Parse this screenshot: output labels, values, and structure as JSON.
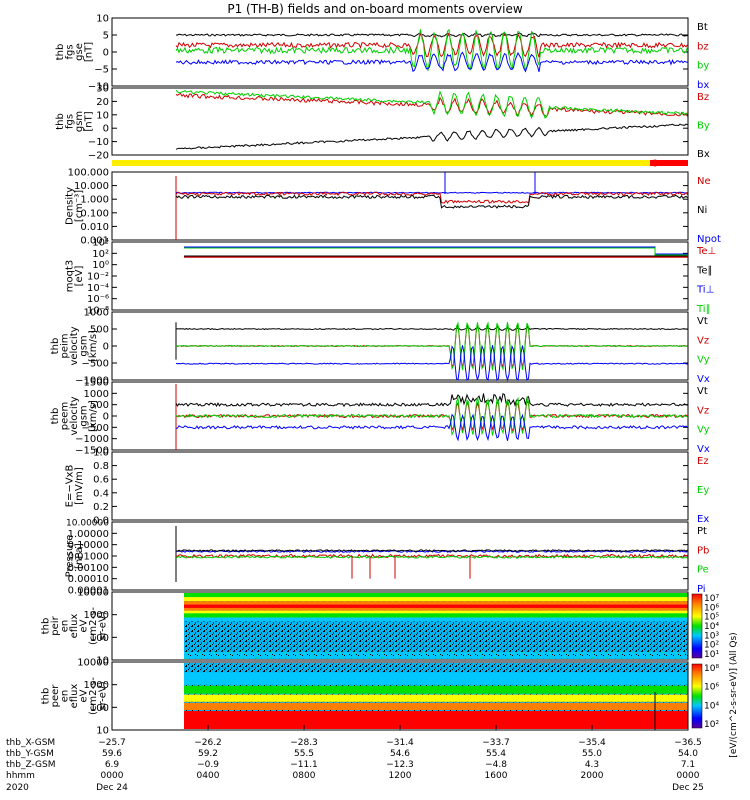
{
  "title": "P1 (TH-B) fields and on-board moments overview",
  "colors": {
    "black": "#000000",
    "red": "#d00000",
    "green": "#00d000",
    "blue": "#0000ff",
    "yellow": "#ffee00"
  },
  "chart_data": [
    {
      "type": "line",
      "panel": "fgs_gse",
      "ylabel": [
        "thb",
        "fgs",
        "gse",
        "[nT]"
      ],
      "ylim": [
        -10,
        10
      ],
      "ticks": [
        "10",
        "5",
        "0",
        "−5",
        "−10"
      ],
      "tick_values": [
        10,
        5,
        0,
        -5,
        -10
      ],
      "legend": [
        {
          "name": "Bt",
          "color": "#000000"
        },
        {
          "name": "bz",
          "color": "#d00000"
        },
        {
          "name": "by",
          "color": "#00d000"
        },
        {
          "name": "bx",
          "color": "#0000ff"
        }
      ],
      "series": [
        {
          "name": "Bt",
          "level": 5,
          "osc": 0
        },
        {
          "name": "bz",
          "level": 2,
          "osc": 4
        },
        {
          "name": "by",
          "level": 0,
          "osc": 6
        },
        {
          "name": "bx",
          "level": -3,
          "osc": 3
        }
      ]
    },
    {
      "type": "line",
      "panel": "fgs_gsm",
      "ylabel": [
        "thb",
        "fgs",
        "gsm",
        "[nT]"
      ],
      "ylim": [
        -25,
        30
      ],
      "ticks": [
        "30",
        "20",
        "10",
        "0",
        "−10",
        "−20"
      ],
      "tick_values": [
        30,
        20,
        10,
        0,
        -10,
        -20
      ],
      "legend": [
        {
          "name": "Bz",
          "color": "#d00000"
        },
        {
          "name": "By",
          "color": "#00d000"
        },
        {
          "name": "Bx",
          "color": "#000000"
        }
      ],
      "series": [
        {
          "name": "Bz",
          "start": 24,
          "end": 8
        },
        {
          "name": "By",
          "start": 27,
          "end": 10
        },
        {
          "name": "Bx",
          "start": -20,
          "end": 0
        }
      ]
    },
    {
      "type": "line",
      "panel": "density",
      "ylabel": [
        "Density",
        "[cm⁻³]"
      ],
      "scale": "log",
      "ylim": [
        0.001,
        100
      ],
      "ticks": [
        "100.000",
        "10.000",
        "1.000",
        "0.100",
        "0.010",
        "0.001"
      ],
      "tick_values": [
        100,
        10,
        1,
        0.1,
        0.01,
        0.001
      ],
      "legend": [
        {
          "name": "Ne",
          "color": "#d00000"
        },
        {
          "name": "Ni",
          "color": "#000000"
        },
        {
          "name": "Npot",
          "color": "#0000ff"
        }
      ],
      "series": [
        {
          "name": "Ne",
          "level": 3
        },
        {
          "name": "Ni",
          "level": 2
        },
        {
          "name": "Npot",
          "level": 4
        }
      ]
    },
    {
      "type": "line",
      "panel": "temperature",
      "ylabel": [
        "moqt3",
        "[eV]"
      ],
      "scale": "log",
      "ticks": [
        "10⁴",
        "10²",
        "10⁰",
        "10⁻²",
        "10⁻⁴",
        "10⁻⁶",
        "10⁻⁸"
      ],
      "legend": [
        {
          "name": "Te⊥",
          "color": "#d00000"
        },
        {
          "name": "Te∥",
          "color": "#000000"
        },
        {
          "name": "Ti⊥",
          "color": "#0000ff"
        },
        {
          "name": "Ti∥",
          "color": "#00d000"
        }
      ]
    },
    {
      "type": "line",
      "panel": "peim_velocity",
      "ylabel": [
        "thb",
        "peim",
        "velocity",
        "gsm",
        "[km/s]"
      ],
      "ylim": [
        -1000,
        1000
      ],
      "ticks": [
        "1000",
        "500",
        "0",
        "−500",
        "−1000"
      ],
      "tick_values": [
        1000,
        500,
        0,
        -500,
        -1000
      ],
      "legend": [
        {
          "name": "Vt",
          "color": "#000000"
        },
        {
          "name": "Vz",
          "color": "#d00000"
        },
        {
          "name": "Vy",
          "color": "#00d000"
        },
        {
          "name": "Vx",
          "color": "#0000ff"
        }
      ],
      "series": [
        {
          "name": "Vt",
          "level": 500
        },
        {
          "name": "Vz",
          "level": 0
        },
        {
          "name": "Vy",
          "level": 0
        },
        {
          "name": "Vx",
          "level": -520
        }
      ]
    },
    {
      "type": "line",
      "panel": "peem_velocity",
      "ylabel": [
        "thb",
        "peem",
        "velocity",
        "gsm",
        "[km/s]"
      ],
      "ylim": [
        -1500,
        1500
      ],
      "ticks": [
        "1500",
        "1000",
        "500",
        "0",
        "−500",
        "−1000",
        "−1500"
      ],
      "tick_values": [
        1500,
        1000,
        500,
        0,
        -500,
        -1000,
        -1500
      ],
      "legend": [
        {
          "name": "Vt",
          "color": "#000000"
        },
        {
          "name": "Vz",
          "color": "#d00000"
        },
        {
          "name": "Vy",
          "color": "#00d000"
        },
        {
          "name": "Vx",
          "color": "#0000ff"
        }
      ],
      "series": [
        {
          "name": "Vt",
          "level": 500
        },
        {
          "name": "Vz",
          "level": 0
        },
        {
          "name": "Vy",
          "level": 0
        },
        {
          "name": "Vx",
          "level": -500
        }
      ]
    },
    {
      "type": "line",
      "panel": "efield",
      "ylabel": [
        "E=−VxB",
        "[mV/m]"
      ],
      "ylim": [
        0,
        1
      ],
      "ticks": [
        "1.0",
        "0.8",
        "0.6",
        "0.4",
        "0.2",
        "0.0"
      ],
      "tick_values": [
        1,
        0.8,
        0.6,
        0.4,
        0.2,
        0
      ],
      "legend": [
        {
          "name": "Ez",
          "color": "#d00000"
        },
        {
          "name": "Ey",
          "color": "#00d000"
        },
        {
          "name": "Ex",
          "color": "#0000ff"
        }
      ]
    },
    {
      "type": "line",
      "panel": "pressure",
      "ylabel": [
        "Pressure",
        "[nPa]"
      ],
      "scale": "log",
      "ylim": [
        1e-05,
        10
      ],
      "ticks": [
        "10.00000",
        "1.00000",
        "0.10000",
        "0.01000",
        "0.00100",
        "0.00010",
        "0.00001"
      ],
      "tick_values": [
        10,
        1,
        0.1,
        0.01,
        0.001,
        0.0001,
        1e-05
      ],
      "legend": [
        {
          "name": "Pt",
          "color": "#000000"
        },
        {
          "name": "Pb",
          "color": "#d00000"
        },
        {
          "name": "Pe",
          "color": "#00d000"
        },
        {
          "name": "Pi",
          "color": "#0000ff"
        }
      ],
      "series": [
        {
          "name": "Pt",
          "level": 0.03
        },
        {
          "name": "Pb",
          "level": 0.01
        },
        {
          "name": "Pe",
          "level": 0.008
        },
        {
          "name": "Pi",
          "level": 0.025
        }
      ]
    },
    {
      "type": "heatmap",
      "panel": "peir_eflux",
      "ylabel": [
        "thb",
        "peir",
        "en",
        "eflux",
        "eV",
        "(cm2-s-",
        "sr-eV)"
      ],
      "ticks": [
        "10000",
        "1000",
        "100",
        "10"
      ],
      "colorbar_ticks": [
        "10⁷",
        "10⁶",
        "10⁵",
        "10⁴",
        "10³",
        "10²",
        "10¹"
      ]
    },
    {
      "type": "heatmap",
      "panel": "peer_eflux",
      "ylabel": [
        "thb",
        "peer",
        "en",
        "eflux",
        "eV",
        "(cm2-s-",
        "sr-eV)"
      ],
      "ticks": [
        "10000",
        "1000",
        "100",
        "10"
      ],
      "colorbar_ticks": [
        "10⁸",
        "10⁶",
        "10⁴",
        "10²"
      ]
    }
  ],
  "colorbar_label": "[eV/(cm^2-s-sr-eV)] (All Qs)",
  "axis": {
    "rows": [
      {
        "label": "thb_X-GSM",
        "values": [
          "−25.7",
          "−26.2",
          "−28.3",
          "−31.4",
          "−33.7",
          "−35.4",
          "−36.5"
        ]
      },
      {
        "label": "thb_Y-GSM",
        "values": [
          "59.6",
          "59.2",
          "55.5",
          "54.6",
          "55.4",
          "55.0",
          "54.0"
        ]
      },
      {
        "label": "thb_Z-GSM",
        "values": [
          "6.9",
          "−0.9",
          "−11.1",
          "−12.3",
          "−4.8",
          "4.3",
          "7.1"
        ]
      },
      {
        "label": "hhmm",
        "values": [
          "0000",
          "0400",
          "0800",
          "1200",
          "1600",
          "2000",
          "0000"
        ]
      }
    ],
    "year": "2020",
    "date_start": "Dec 24",
    "date_end": "Dec 25"
  }
}
